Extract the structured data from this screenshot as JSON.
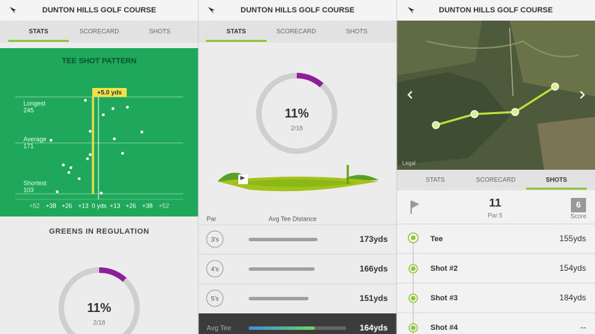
{
  "screen1": {
    "header": {
      "title": "DUNTON HILLS GOLF COURSE"
    },
    "tabs": [
      "STATS",
      "SCORECARD",
      "SHOTS"
    ],
    "tee_shot_pattern": {
      "title": "TEE SHOT PATTERN",
      "rows": [
        {
          "label": "Longest",
          "value": 245
        },
        {
          "label": "Average",
          "value": 171
        },
        {
          "label": "Shortest",
          "value": 103
        }
      ],
      "offset": "+5.0 yds",
      "x_labels": [
        "+52",
        "+38",
        "+26",
        "+13",
        "0 yds",
        "+13",
        "+26",
        "+38",
        "+52"
      ]
    },
    "greens_in_regulation": {
      "title": "GREENS IN REGULATION",
      "percent": "11%",
      "ratio": "2/18"
    }
  },
  "screen2": {
    "header": {
      "title": "DUNTON HILLS GOLF COURSE"
    },
    "tabs": [
      "STATS",
      "SCORECARD",
      "SHOTS"
    ],
    "ring": {
      "percent": "11%",
      "ratio": "2/18"
    },
    "table": {
      "columns": [
        "Par",
        "Avg Tee Distance"
      ],
      "rows": [
        [
          "3's",
          "173yds"
        ],
        [
          "4's",
          "166yds"
        ],
        [
          "5's",
          "151yds"
        ]
      ],
      "footer": [
        "Avg Tee",
        "164yds"
      ]
    }
  },
  "screen3": {
    "header": {
      "title": "DUNTON HILLS GOLF COURSE"
    },
    "map": {
      "credit": "Legal"
    },
    "tabs": [
      "STATS",
      "SCORECARD",
      "SHOTS"
    ],
    "hole": {
      "number": 11,
      "par": "Par 5",
      "score": 6,
      "score_label": "Score"
    },
    "shots": [
      [
        "Tee",
        "155yds"
      ],
      [
        "Shot #2",
        "154yds"
      ],
      [
        "Shot #3",
        "184yds"
      ],
      [
        "Shot #4",
        "--"
      ]
    ]
  }
}
